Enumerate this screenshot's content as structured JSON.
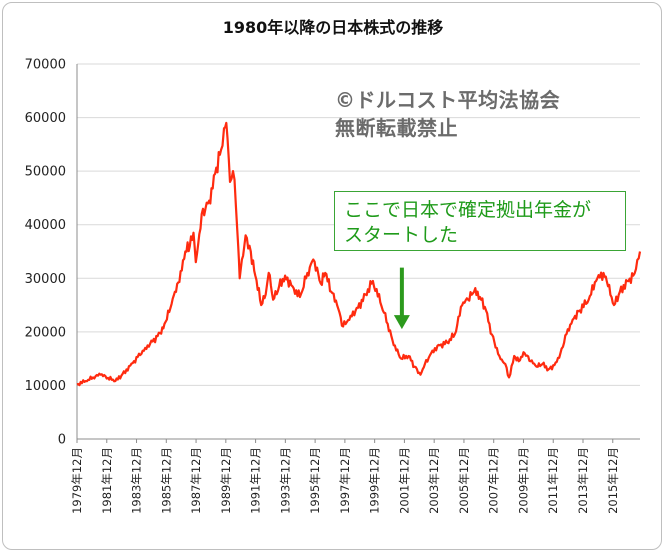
{
  "chart_data": {
    "type": "line",
    "title": "1980年以降の日本株式の推移",
    "xlabel": "",
    "ylabel": "",
    "ylim": [
      0,
      70000
    ],
    "y_ticks": [
      "70000",
      "60000",
      "50000",
      "40000",
      "30000",
      "20000",
      "10000",
      "0"
    ],
    "x_tick_labels": [
      "1979年12月",
      "1981年12月",
      "1983年12月",
      "1985年12月",
      "1987年12月",
      "1989年12月",
      "1991年12月",
      "1993年12月",
      "1995年12月",
      "1997年12月",
      "1999年12月",
      "2001年12月",
      "2003年12月",
      "2005年12月",
      "2007年12月",
      "2009年12月",
      "2011年12月",
      "2013年12月",
      "2015年12月"
    ],
    "x_range": [
      1979.92,
      2017.75
    ],
    "grid": "horizontal",
    "line_color": "#ff2b0f",
    "series": [
      {
        "x": [
          1979.92,
          1980.5,
          1981.0,
          1981.5,
          1982.0,
          1982.5,
          1982.9,
          1983.5,
          1984.0,
          1984.5,
          1985.0,
          1985.5,
          1985.8,
          1986.2,
          1986.5,
          1986.8,
          1987.2,
          1987.5,
          1987.75,
          1987.9,
          1988.3,
          1988.8,
          1989.2,
          1989.6,
          1989.8,
          1989.95,
          1990.2,
          1990.4,
          1990.6,
          1990.75,
          1990.85,
          1991.0,
          1991.25,
          1991.6,
          1991.9,
          1992.3,
          1992.6,
          1992.8,
          1993.1,
          1993.5,
          1993.9,
          1994.4,
          1994.9,
          1995.4,
          1995.8,
          1996.3,
          1996.6,
          1997.0,
          1997.4,
          1997.8,
          1998.3,
          1998.8,
          1999.3,
          1999.8,
          2000.3,
          2000.8,
          2001.2,
          2001.7,
          2002.2,
          2002.6,
          2003.0,
          2003.3,
          2003.8,
          2004.3,
          2004.8,
          2005.3,
          2005.8,
          2006.2,
          2006.6,
          2007.0,
          2007.4,
          2007.8,
          2008.3,
          2008.7,
          2008.95,
          2009.3,
          2009.6,
          2010.0,
          2010.4,
          2010.8,
          2011.2,
          2011.6,
          2012.0,
          2012.4,
          2012.9,
          2013.3,
          2013.7,
          2014.3,
          2014.8,
          2015.3,
          2015.6,
          2016.0,
          2016.4,
          2016.9,
          2017.3,
          2017.75
        ],
        "values": [
          10200,
          10800,
          11500,
          12000,
          11400,
          10800,
          11800,
          13700,
          15300,
          17000,
          18200,
          19800,
          21500,
          24500,
          27500,
          29300,
          35000,
          36000,
          38500,
          33000,
          42000,
          44500,
          49500,
          54000,
          58000,
          59000,
          48000,
          50000,
          43500,
          36000,
          30000,
          33500,
          38000,
          35000,
          30500,
          25000,
          27000,
          31000,
          26000,
          28500,
          30500,
          28500,
          26500,
          31000,
          33500,
          29000,
          31000,
          27500,
          25000,
          21000,
          23000,
          24500,
          27000,
          29500,
          25500,
          21500,
          17500,
          15000,
          15500,
          13500,
          12000,
          14000,
          16500,
          17500,
          18000,
          19500,
          25000,
          26000,
          27500,
          26500,
          24000,
          19500,
          15500,
          14000,
          11500,
          15500,
          14500,
          16000,
          14500,
          13500,
          14000,
          13000,
          13800,
          16000,
          20500,
          22500,
          24000,
          26000,
          29500,
          31000,
          28500,
          25000,
          27500,
          29500,
          30500,
          35000
        ]
      }
    ],
    "annotation": {
      "lines": [
        "ここで日本で確定拠出年金が",
        "スタートした"
      ],
      "arrow_x": 2001.75,
      "arrow_from": 32000,
      "arrow_to": 20500,
      "color": "#2c9a1d"
    },
    "watermark": {
      "lines": [
        "©ドルコスト平均法協会",
        "無断転載禁止"
      ]
    }
  }
}
